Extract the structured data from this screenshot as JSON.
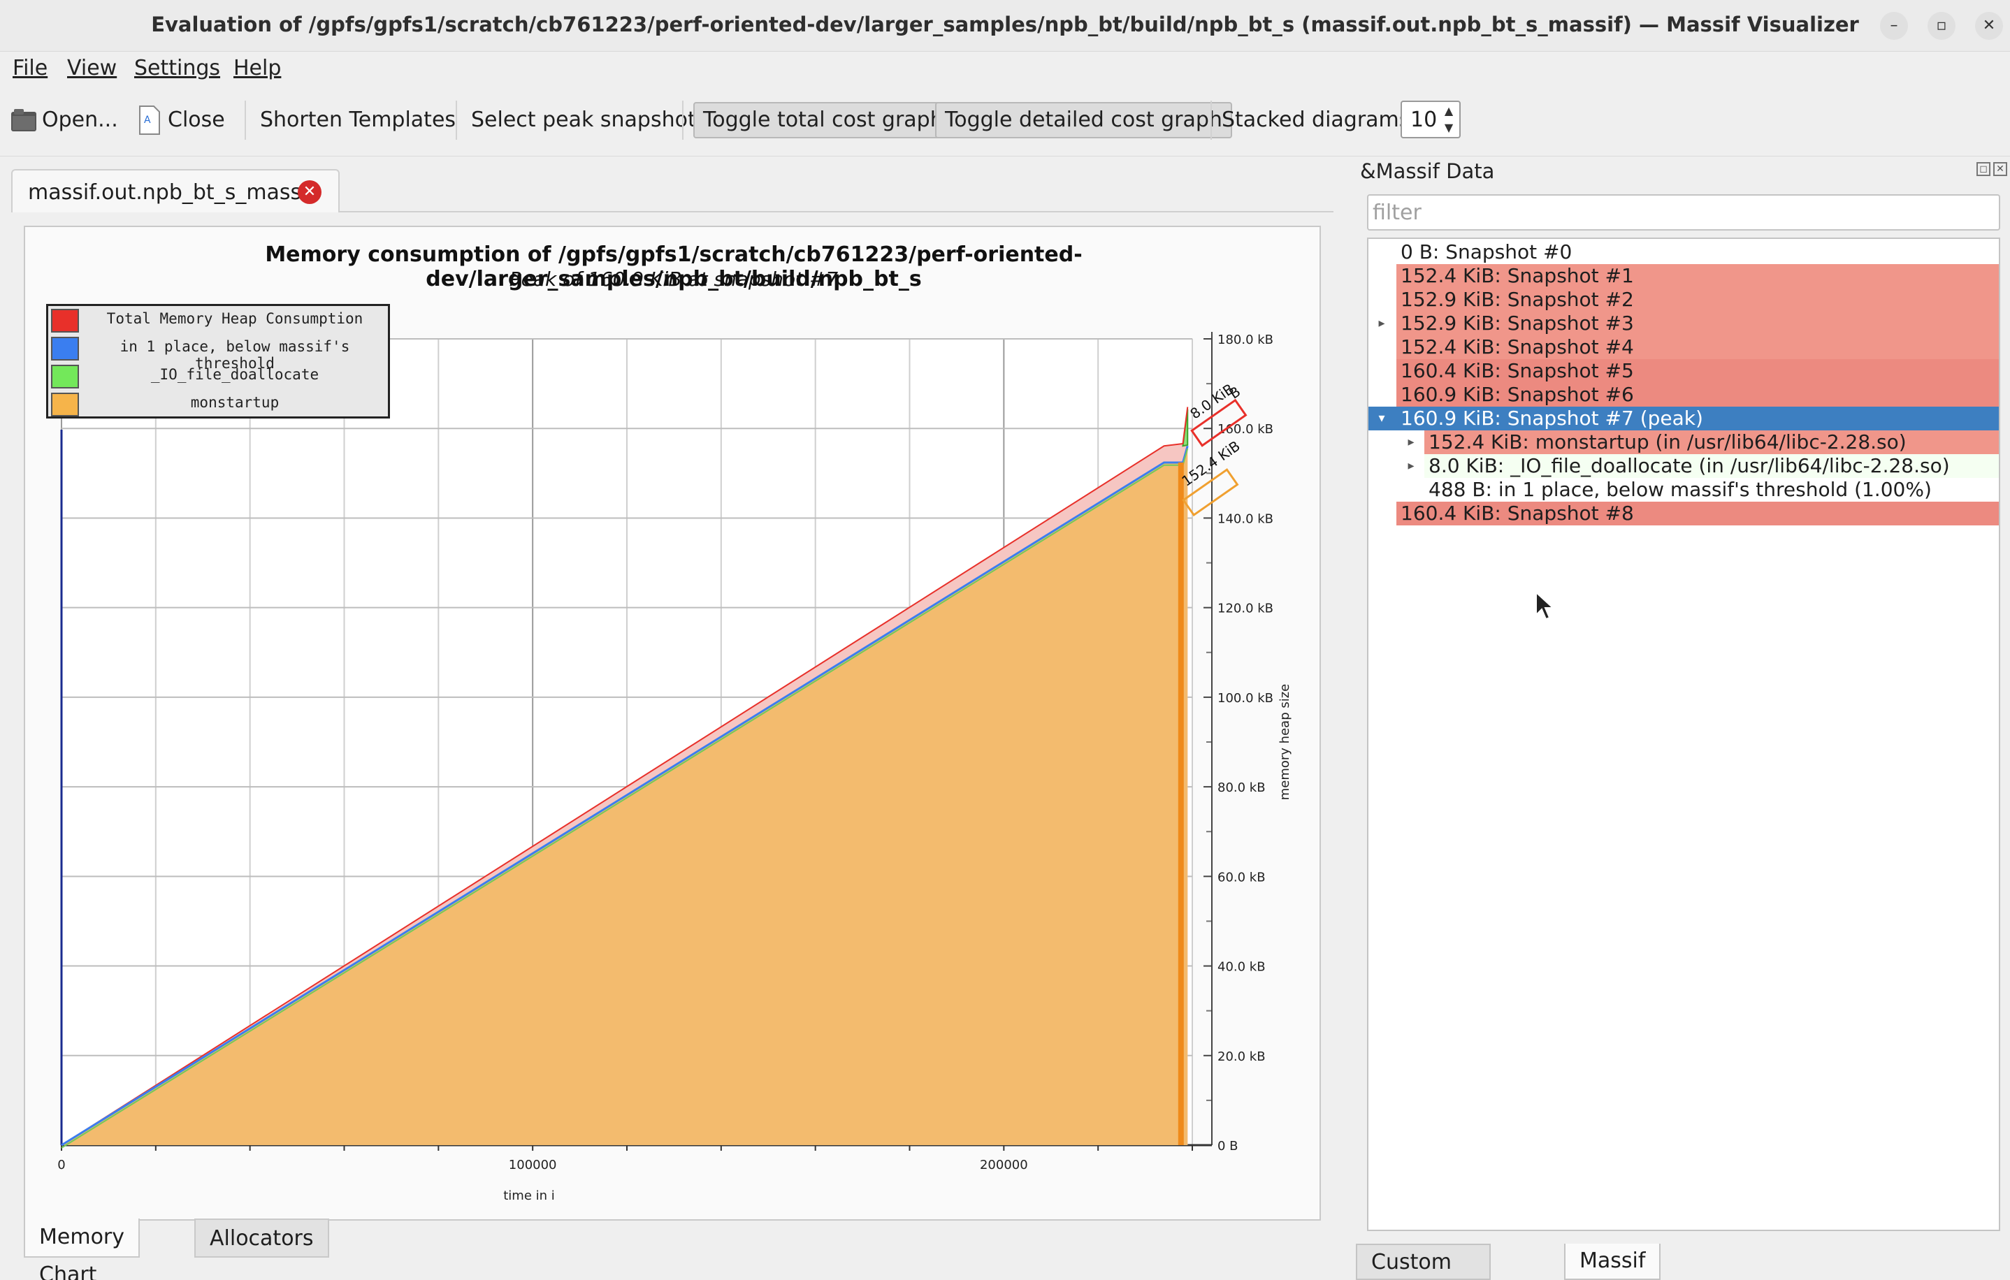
{
  "window": {
    "title": "Evaluation of /gpfs/gpfs1/scratch/cb761223/perf-oriented-dev/larger_samples/npb_bt/build/npb_bt_s (massif.out.npb_bt_s_massif) — Massif Visualizer",
    "minimize": "–",
    "maximize": "▫",
    "close": "✕"
  },
  "menu": {
    "file": "File",
    "view": "View",
    "settings": "Settings",
    "help": "Help"
  },
  "toolbar": {
    "open": "Open...",
    "close": "Close",
    "shorten_templates": "Shorten Templates",
    "select_peak": "Select peak snapshot",
    "toggle_total": "Toggle total cost graph",
    "toggle_detailed": "Toggle detailed cost graph",
    "stacked_label": "Stacked diagrams:",
    "stacked_value": "10"
  },
  "doc_tab": {
    "label": "massif.out.npb_bt_s_massif",
    "close": "✕"
  },
  "chart_data": {
    "type": "area",
    "title": "Memory consumption of /gpfs/gpfs1/scratch/cb761223/perf-oriented-dev/larger_samples/npb_bt/build/npb_bt_s",
    "subtitle": "Peak of 160.9 KiB at snapshot #7",
    "xlabel": "time in i",
    "ylabel": "memory heap size",
    "x_ticks": [
      "0",
      "100000",
      "200000"
    ],
    "y_ticks": [
      "0 B",
      "20.0 kB",
      "40.0 kB",
      "60.0 kB",
      "80.0 kB",
      "100.0 kB",
      "120.0 kB",
      "140.0 kB",
      "160.0 kB",
      "180.0 kB"
    ],
    "xlim": [
      0,
      240000
    ],
    "ylim_kb": [
      0,
      180
    ],
    "legend_position": "top-left",
    "legend": [
      {
        "name": "Total Memory Heap Consumption",
        "color": "#e8302a"
      },
      {
        "name": "in 1 place, below massif's threshold",
        "color": "#3a7ef0"
      },
      {
        "name": "_IO_file_doallocate",
        "color": "#73e85a"
      },
      {
        "name": "monstartup",
        "color": "#f6b44a"
      }
    ],
    "series": [
      {
        "name": "Total Memory Heap Consumption",
        "x": [
          0,
          234000,
          238000,
          239000
        ],
        "values_kb": [
          0,
          156.1,
          156.6,
          164.8
        ]
      },
      {
        "name": "monstartup",
        "x": [
          0,
          234000,
          238000,
          239000
        ],
        "values_kb": [
          0,
          152.4,
          152.4,
          156.1
        ]
      },
      {
        "name": "_IO_file_doallocate",
        "x": [
          238000,
          239000
        ],
        "values_kb": [
          156.1,
          164.3
        ]
      }
    ],
    "annotations": [
      "8.0 KiB",
      "152.4 KiB",
      "B"
    ]
  },
  "bottom_tabs": {
    "memory_chart": "Memory Chart",
    "allocators": "Allocators"
  },
  "dock": {
    "title": "&Massif Data",
    "filter_placeholder": "filter",
    "rows": [
      {
        "text": "0 B: Snapshot #0"
      },
      {
        "text": "152.4 KiB: Snapshot #1"
      },
      {
        "text": "152.9 KiB: Snapshot #2"
      },
      {
        "text": "152.9 KiB: Snapshot #3",
        "expander": "▸"
      },
      {
        "text": "152.4 KiB: Snapshot #4"
      },
      {
        "text": "160.4 KiB: Snapshot #5"
      },
      {
        "text": "160.9 KiB: Snapshot #6"
      },
      {
        "text": "160.9 KiB: Snapshot #7 (peak)",
        "expander": "▾"
      },
      {
        "text": "152.4 KiB: monstartup (in /usr/lib64/libc-2.28.so)",
        "expander": "▸"
      },
      {
        "text": "8.0 KiB: _IO_file_doallocate (in /usr/lib64/libc-2.28.so)",
        "expander": "▸"
      },
      {
        "text": "488 B: in 1 place, below massif's threshold (1.00%)"
      },
      {
        "text": "160.4 KiB: Snapshot #8"
      }
    ],
    "tabs": {
      "custom_allocators": "Custom Allocators",
      "massif_data": "Massif Data"
    }
  }
}
